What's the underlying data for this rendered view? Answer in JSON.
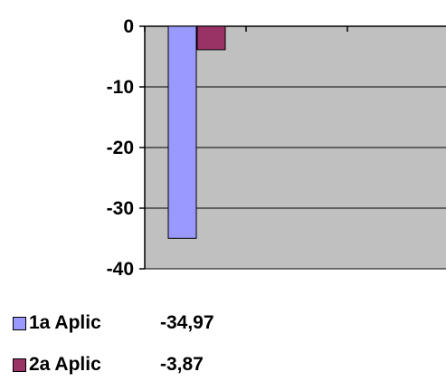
{
  "chart_data": {
    "type": "bar",
    "categories": [
      "1a Aplic",
      "2a Aplic"
    ],
    "values": [
      -34.97,
      -3.87
    ],
    "ylim": [
      -40,
      0
    ],
    "yticks": [
      0,
      -10,
      -20,
      -30,
      -40
    ],
    "ytick_labels": [
      "0",
      "-10",
      "-20",
      "-30",
      "-40"
    ],
    "grid": true,
    "colors": [
      "#9999ff",
      "#993366"
    ],
    "plot_background": "#c0c0c0",
    "legend_position": "bottom"
  },
  "legend": {
    "items": [
      {
        "label": "1a Aplic",
        "value_text": "-34,97",
        "color": "#9999ff"
      },
      {
        "label": "2a Aplic",
        "value_text": "-3,87",
        "color": "#993366"
      }
    ]
  }
}
